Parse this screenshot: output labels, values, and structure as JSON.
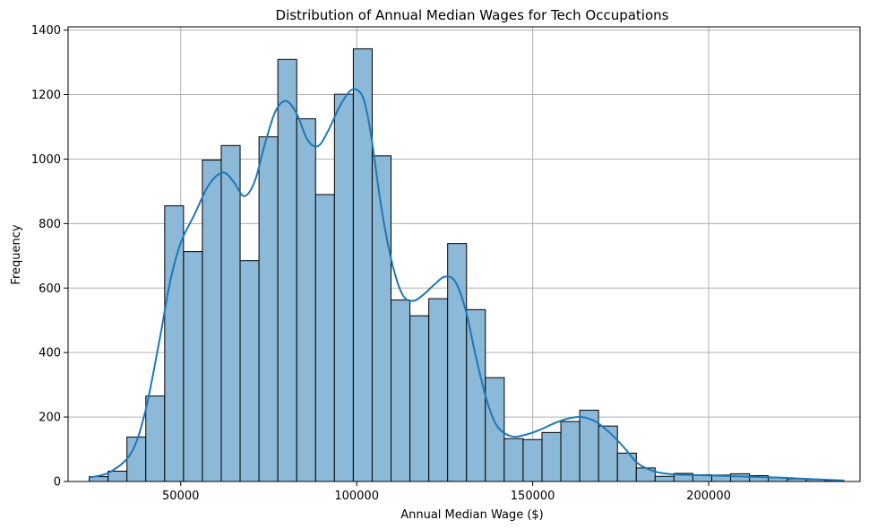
{
  "chart_data": {
    "type": "bar",
    "subtype": "histogram-with-kde",
    "title": "Distribution of Annual Median Wages for Tech Occupations",
    "xlabel": "Annual Median Wage ($)",
    "ylabel": "Frequency",
    "xlim": [
      18000,
      243000
    ],
    "ylim": [
      0,
      1410
    ],
    "x_ticks": [
      50000,
      100000,
      150000,
      200000
    ],
    "y_ticks": [
      0,
      200,
      400,
      600,
      800,
      1000,
      1200,
      1400
    ],
    "grid": true,
    "bar_color": "#8db9d9",
    "bar_edge_color": "#000000",
    "line_color": "#1f77b4",
    "bin_edges": [
      24000,
      29360,
      34720,
      40080,
      45440,
      50800,
      56160,
      61520,
      66880,
      72240,
      77600,
      82960,
      88320,
      93680,
      99040,
      104400,
      109760,
      115120,
      120480,
      125840,
      131200,
      136560,
      141920,
      147280,
      152640,
      158000,
      163360,
      168720,
      174080,
      179440,
      184800,
      190160,
      195520,
      200880,
      206240,
      211600,
      216960,
      222320,
      227680,
      233040,
      238400
    ],
    "values": [
      15,
      32,
      138,
      265,
      855,
      713,
      997,
      1042,
      685,
      1069,
      1309,
      1125,
      890,
      1201,
      1342,
      1010,
      563,
      514,
      567,
      738,
      533,
      322,
      133,
      130,
      152,
      186,
      221,
      172,
      88,
      42,
      16,
      25,
      21,
      20,
      24,
      18,
      12,
      8,
      6,
      3
    ],
    "kde": {
      "x": [
        24000,
        30000,
        36000,
        40000,
        44000,
        47000,
        50000,
        54000,
        58000,
        62000,
        65000,
        68000,
        71000,
        74000,
        77000,
        80000,
        83000,
        86000,
        89000,
        92000,
        95000,
        98000,
        100000,
        102000,
        104000,
        107000,
        110000,
        113000,
        116000,
        119000,
        122000,
        125000,
        128000,
        131000,
        134000,
        137000,
        140000,
        144000,
        148000,
        152000,
        156000,
        160000,
        164000,
        168000,
        172000,
        176000,
        180000,
        185000,
        190000,
        196000,
        202000,
        208000,
        214000,
        220000,
        226000,
        232000,
        238400
      ],
      "y": [
        12,
        30,
        90,
        220,
        440,
        620,
        740,
        830,
        920,
        958,
        930,
        885,
        930,
        1050,
        1150,
        1180,
        1140,
        1060,
        1040,
        1090,
        1160,
        1210,
        1215,
        1185,
        1080,
        850,
        680,
        580,
        560,
        580,
        610,
        635,
        620,
        530,
        380,
        250,
        170,
        140,
        145,
        160,
        180,
        195,
        200,
        185,
        150,
        105,
        55,
        30,
        22,
        20,
        18,
        16,
        14,
        12,
        9,
        6,
        3
      ]
    }
  }
}
